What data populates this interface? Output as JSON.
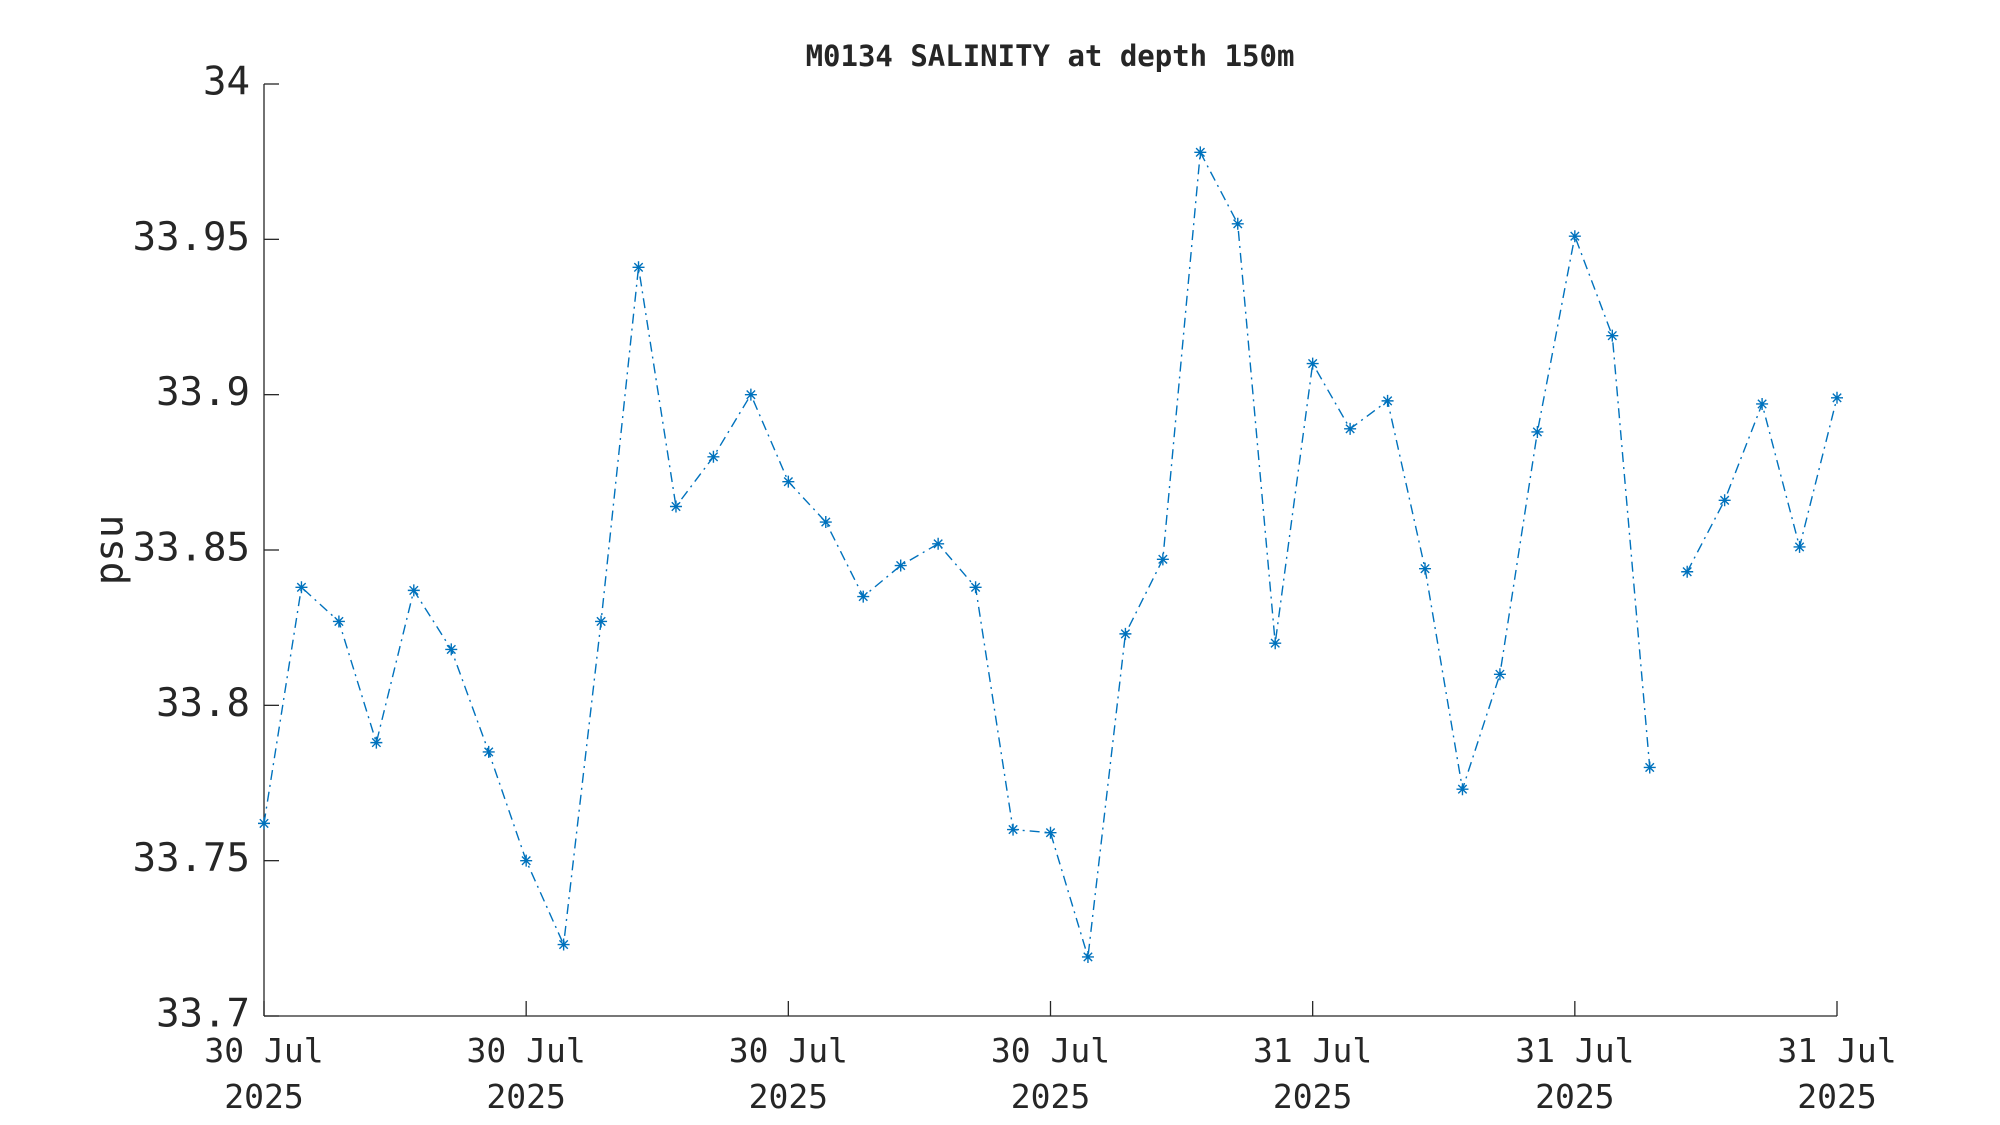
{
  "chart_data": {
    "type": "line",
    "title": "M0134 SALINITY at depth 150m",
    "y_label": "psu",
    "series": [
      {
        "color": "#0072bd",
        "x": [
          0,
          1,
          2,
          3,
          4,
          5,
          6,
          7,
          8,
          9,
          10,
          11,
          12,
          13,
          14,
          15,
          16,
          17,
          18,
          19,
          20,
          21,
          22,
          23,
          24,
          25,
          26,
          27,
          28,
          29,
          30,
          31,
          32,
          33,
          34,
          35,
          36,
          37
        ],
        "values": [
          33.762,
          33.838,
          33.827,
          33.788,
          33.837,
          33.818,
          33.785,
          33.75,
          33.723,
          33.827,
          33.941,
          33.864,
          33.88,
          33.9,
          33.872,
          33.859,
          33.835,
          33.845,
          33.852,
          33.838,
          33.76,
          33.759,
          33.719,
          33.823,
          33.847,
          33.978,
          33.955,
          33.82,
          33.91,
          33.889,
          33.898,
          33.844,
          33.773,
          33.81,
          33.888,
          33.951,
          33.919,
          33.78
        ]
      },
      {
        "color": "#0072bd",
        "x": [
          38,
          39,
          40,
          41,
          42
        ],
        "values": [
          33.843,
          33.866,
          33.897,
          33.851,
          33.899
        ]
      }
    ],
    "xlim": [
      0,
      42
    ],
    "xticks": [
      {
        "value": 0,
        "label": "30 Jul 2025"
      },
      {
        "value": 7,
        "label": "30 Jul 2025"
      },
      {
        "value": 14,
        "label": "30 Jul 2025"
      },
      {
        "value": 21,
        "label": "30 Jul 2025"
      },
      {
        "value": 28,
        "label": "31 Jul 2025"
      },
      {
        "value": 35,
        "label": "31 Jul 2025"
      },
      {
        "value": 42,
        "label": "31 Jul 2025"
      }
    ],
    "ylim": [
      33.7,
      34
    ],
    "yticks": [
      33.7,
      33.75,
      33.8,
      33.85,
      33.9,
      33.95,
      34
    ],
    "marker": "asterisk",
    "line_style": "dash-dot",
    "grid": false
  }
}
